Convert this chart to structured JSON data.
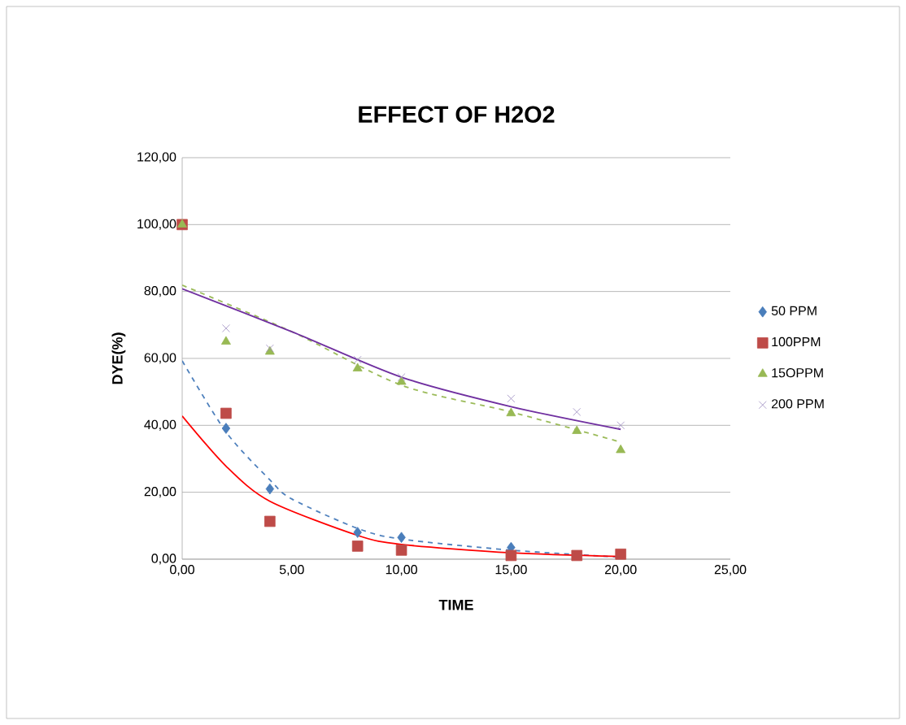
{
  "chart_data": {
    "type": "scatter",
    "title": "EFFECT OF H2O2",
    "xlabel": "TIME",
    "ylabel": "DYE(%)",
    "xlim": [
      0,
      25
    ],
    "ylim": [
      0,
      120
    ],
    "xticks": [
      {
        "value": 0,
        "label": "0,00"
      },
      {
        "value": 5,
        "label": "5,00"
      },
      {
        "value": 10,
        "label": "10,00"
      },
      {
        "value": 15,
        "label": "15,00"
      },
      {
        "value": 20,
        "label": "20,00"
      },
      {
        "value": 25,
        "label": "25,00"
      }
    ],
    "yticks": [
      {
        "value": 0,
        "label": "0,00"
      },
      {
        "value": 20,
        "label": "20,00"
      },
      {
        "value": 40,
        "label": "40,00"
      },
      {
        "value": 60,
        "label": "60,00"
      },
      {
        "value": 80,
        "label": "80,00"
      },
      {
        "value": 100,
        "label": "100,00"
      },
      {
        "value": 120,
        "label": "120,00"
      }
    ],
    "grid": "y",
    "legend": "right",
    "series": [
      {
        "name": "50 PPM",
        "color": "#4a7ebb",
        "marker": "diamond",
        "x": [
          2,
          4,
          8,
          10,
          15
        ],
        "values": [
          39.1,
          21,
          8,
          6.5,
          3.5
        ]
      },
      {
        "name": "100PPM",
        "color": "#be4b48",
        "marker": "square",
        "x": [
          0,
          2,
          4,
          8,
          10,
          15,
          18,
          20
        ],
        "values": [
          100,
          43.6,
          11.3,
          3.9,
          2.7,
          1.1,
          1.1,
          1.5
        ]
      },
      {
        "name": "15OPPM",
        "color": "#98b954",
        "marker": "triangle",
        "x": [
          0,
          2,
          4,
          8,
          10,
          15,
          18,
          20
        ],
        "values": [
          100,
          65,
          62,
          57,
          53,
          43.6,
          38.3,
          32.6
        ]
      },
      {
        "name": "200 PPM",
        "color": "#9d8bc0",
        "marker": "cross",
        "x": [
          2,
          4,
          8,
          10,
          15,
          18,
          20
        ],
        "values": [
          69,
          63,
          59.6,
          54.4,
          48,
          44,
          40
        ]
      },
      {
        "type": "line",
        "color": "#4f81bd",
        "marker": "none",
        "line_style": "dashed",
        "x": [
          0,
          2,
          4,
          5,
          8,
          10,
          15,
          20
        ],
        "values": [
          59.3,
          38,
          23.7,
          18,
          9.2,
          6,
          2.7,
          0.6
        ]
      },
      {
        "type": "line",
        "color": "#ff0000",
        "marker": "none",
        "x": [
          0,
          2,
          4,
          8,
          10,
          15,
          20
        ],
        "values": [
          42.8,
          27.8,
          17.3,
          7.1,
          4.4,
          1.9,
          0.8
        ]
      },
      {
        "type": "line",
        "color": "#9bbb59",
        "marker": "none",
        "line_style": "dashed",
        "x": [
          0,
          5,
          10,
          15,
          20
        ],
        "values": [
          81.9,
          68,
          52,
          44,
          35
        ]
      },
      {
        "type": "line",
        "color": "#7030a0",
        "marker": "none",
        "x": [
          0,
          5,
          10,
          15,
          20
        ],
        "values": [
          80.8,
          68,
          54.4,
          45.6,
          38.8
        ]
      }
    ]
  }
}
